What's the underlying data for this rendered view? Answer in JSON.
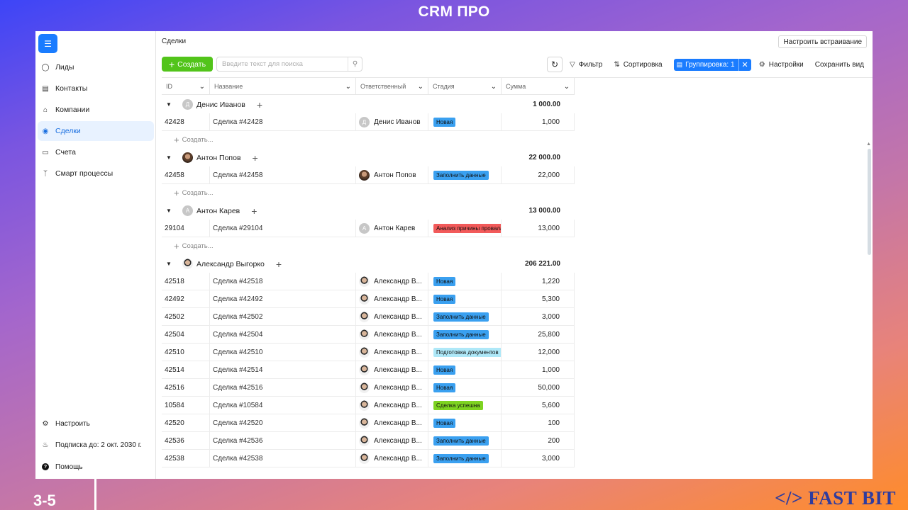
{
  "slide": {
    "title": "CRM ПРО",
    "number": "3-5",
    "brand": "</> FAST BIT"
  },
  "colors": {
    "accent": "#1a7cff",
    "create": "#52c41a",
    "badge_new": "#3aa0f0",
    "badge_fill": "#3aa0f0",
    "badge_fail": "#f25a5a",
    "badge_docs": "#aee8f8",
    "badge_success": "#7ed321"
  },
  "sidebar": {
    "items": [
      {
        "label": "Лиды",
        "icon": "person-icon"
      },
      {
        "label": "Контакты",
        "icon": "contact-card-icon"
      },
      {
        "label": "Компании",
        "icon": "bank-icon"
      },
      {
        "label": "Сделки",
        "icon": "deal-icon",
        "active": true
      },
      {
        "label": "Счета",
        "icon": "invoice-icon"
      },
      {
        "label": "Смарт процессы",
        "icon": "branch-icon"
      }
    ],
    "bottom": [
      {
        "label": "Настроить",
        "icon": "gear-icon"
      },
      {
        "label": "Подписка до: 2 окт. 2030 г.",
        "icon": "bell-icon"
      },
      {
        "label": "Помощь",
        "icon": "help-icon"
      }
    ]
  },
  "header": {
    "breadcrumb": "Сделки",
    "embed_button": "Настроить встраивание",
    "create_button": "Создать",
    "search_placeholder": "Введите текст для поиска",
    "search_value": "",
    "filter": "Фильтр",
    "sort": "Сортировка",
    "grouping": "Группировка: 1",
    "settings": "Настройки",
    "save_view": "Сохранить вид"
  },
  "table": {
    "columns": [
      "ID",
      "Название",
      "Ответственный",
      "Стадия",
      "Сумма"
    ],
    "create_row_label": "Создать...",
    "groups": [
      {
        "name": "Денис Иванов",
        "avatar": "Д",
        "avatar_type": "letter",
        "total": "1 000.00",
        "rows": [
          {
            "id": "42428",
            "name": "Сделка #42428",
            "responsible": "Денис Иванов",
            "stage": "Новая",
            "stage_color": "#3aa0f0",
            "sum": "1,000"
          }
        ],
        "show_create": true
      },
      {
        "name": "Антон Попов",
        "avatar": "",
        "avatar_type": "photo",
        "total": "22 000.00",
        "rows": [
          {
            "id": "42458",
            "name": "Сделка #42458",
            "responsible": "Антон Попов",
            "stage": "Заполнить данные",
            "stage_color": "#3aa0f0",
            "sum": "22,000"
          }
        ],
        "show_create": true
      },
      {
        "name": "Антон Карев",
        "avatar": "А",
        "avatar_type": "letter",
        "total": "13 000.00",
        "rows": [
          {
            "id": "29104",
            "name": "Сделка #29104",
            "responsible": "Антон Карев",
            "stage": "Анализ причины провала",
            "stage_color": "#f25a5a",
            "sum": "13,000"
          }
        ],
        "show_create": true
      },
      {
        "name": "Александр Выгорко",
        "avatar": "",
        "avatar_type": "photo2",
        "total": "206 221.00",
        "rows": [
          {
            "id": "42518",
            "name": "Сделка #42518",
            "responsible": "Александр В...",
            "stage": "Новая",
            "stage_color": "#3aa0f0",
            "sum": "1,220"
          },
          {
            "id": "42492",
            "name": "Сделка #42492",
            "responsible": "Александр В...",
            "stage": "Новая",
            "stage_color": "#3aa0f0",
            "sum": "5,300"
          },
          {
            "id": "42502",
            "name": "Сделка #42502",
            "responsible": "Александр В...",
            "stage": "Заполнить данные",
            "stage_color": "#3aa0f0",
            "sum": "3,000"
          },
          {
            "id": "42504",
            "name": "Сделка #42504",
            "responsible": "Александр В...",
            "stage": "Заполнить данные",
            "stage_color": "#3aa0f0",
            "sum": "25,800"
          },
          {
            "id": "42510",
            "name": "Сделка #42510",
            "responsible": "Александр В...",
            "stage": "Подготовка документов",
            "stage_color": "#aee8f8",
            "sum": "12,000"
          },
          {
            "id": "42514",
            "name": "Сделка #42514",
            "responsible": "Александр В...",
            "stage": "Новая",
            "stage_color": "#3aa0f0",
            "sum": "1,000"
          },
          {
            "id": "42516",
            "name": "Сделка #42516",
            "responsible": "Александр В...",
            "stage": "Новая",
            "stage_color": "#3aa0f0",
            "sum": "50,000"
          },
          {
            "id": "10584",
            "name": "Сделка #10584",
            "responsible": "Александр В...",
            "stage": "Сделка успешна",
            "stage_color": "#7ed321",
            "sum": "5,600"
          },
          {
            "id": "42520",
            "name": "Сделка #42520",
            "responsible": "Александр В...",
            "stage": "Новая",
            "stage_color": "#3aa0f0",
            "sum": "100"
          },
          {
            "id": "42536",
            "name": "Сделка #42536",
            "responsible": "Александр В...",
            "stage": "Заполнить данные",
            "stage_color": "#3aa0f0",
            "sum": "200"
          },
          {
            "id": "42538",
            "name": "Сделка #42538",
            "responsible": "Александр В...",
            "stage": "Заполнить данные",
            "stage_color": "#3aa0f0",
            "sum": "3,000"
          }
        ],
        "show_create": false
      }
    ]
  }
}
